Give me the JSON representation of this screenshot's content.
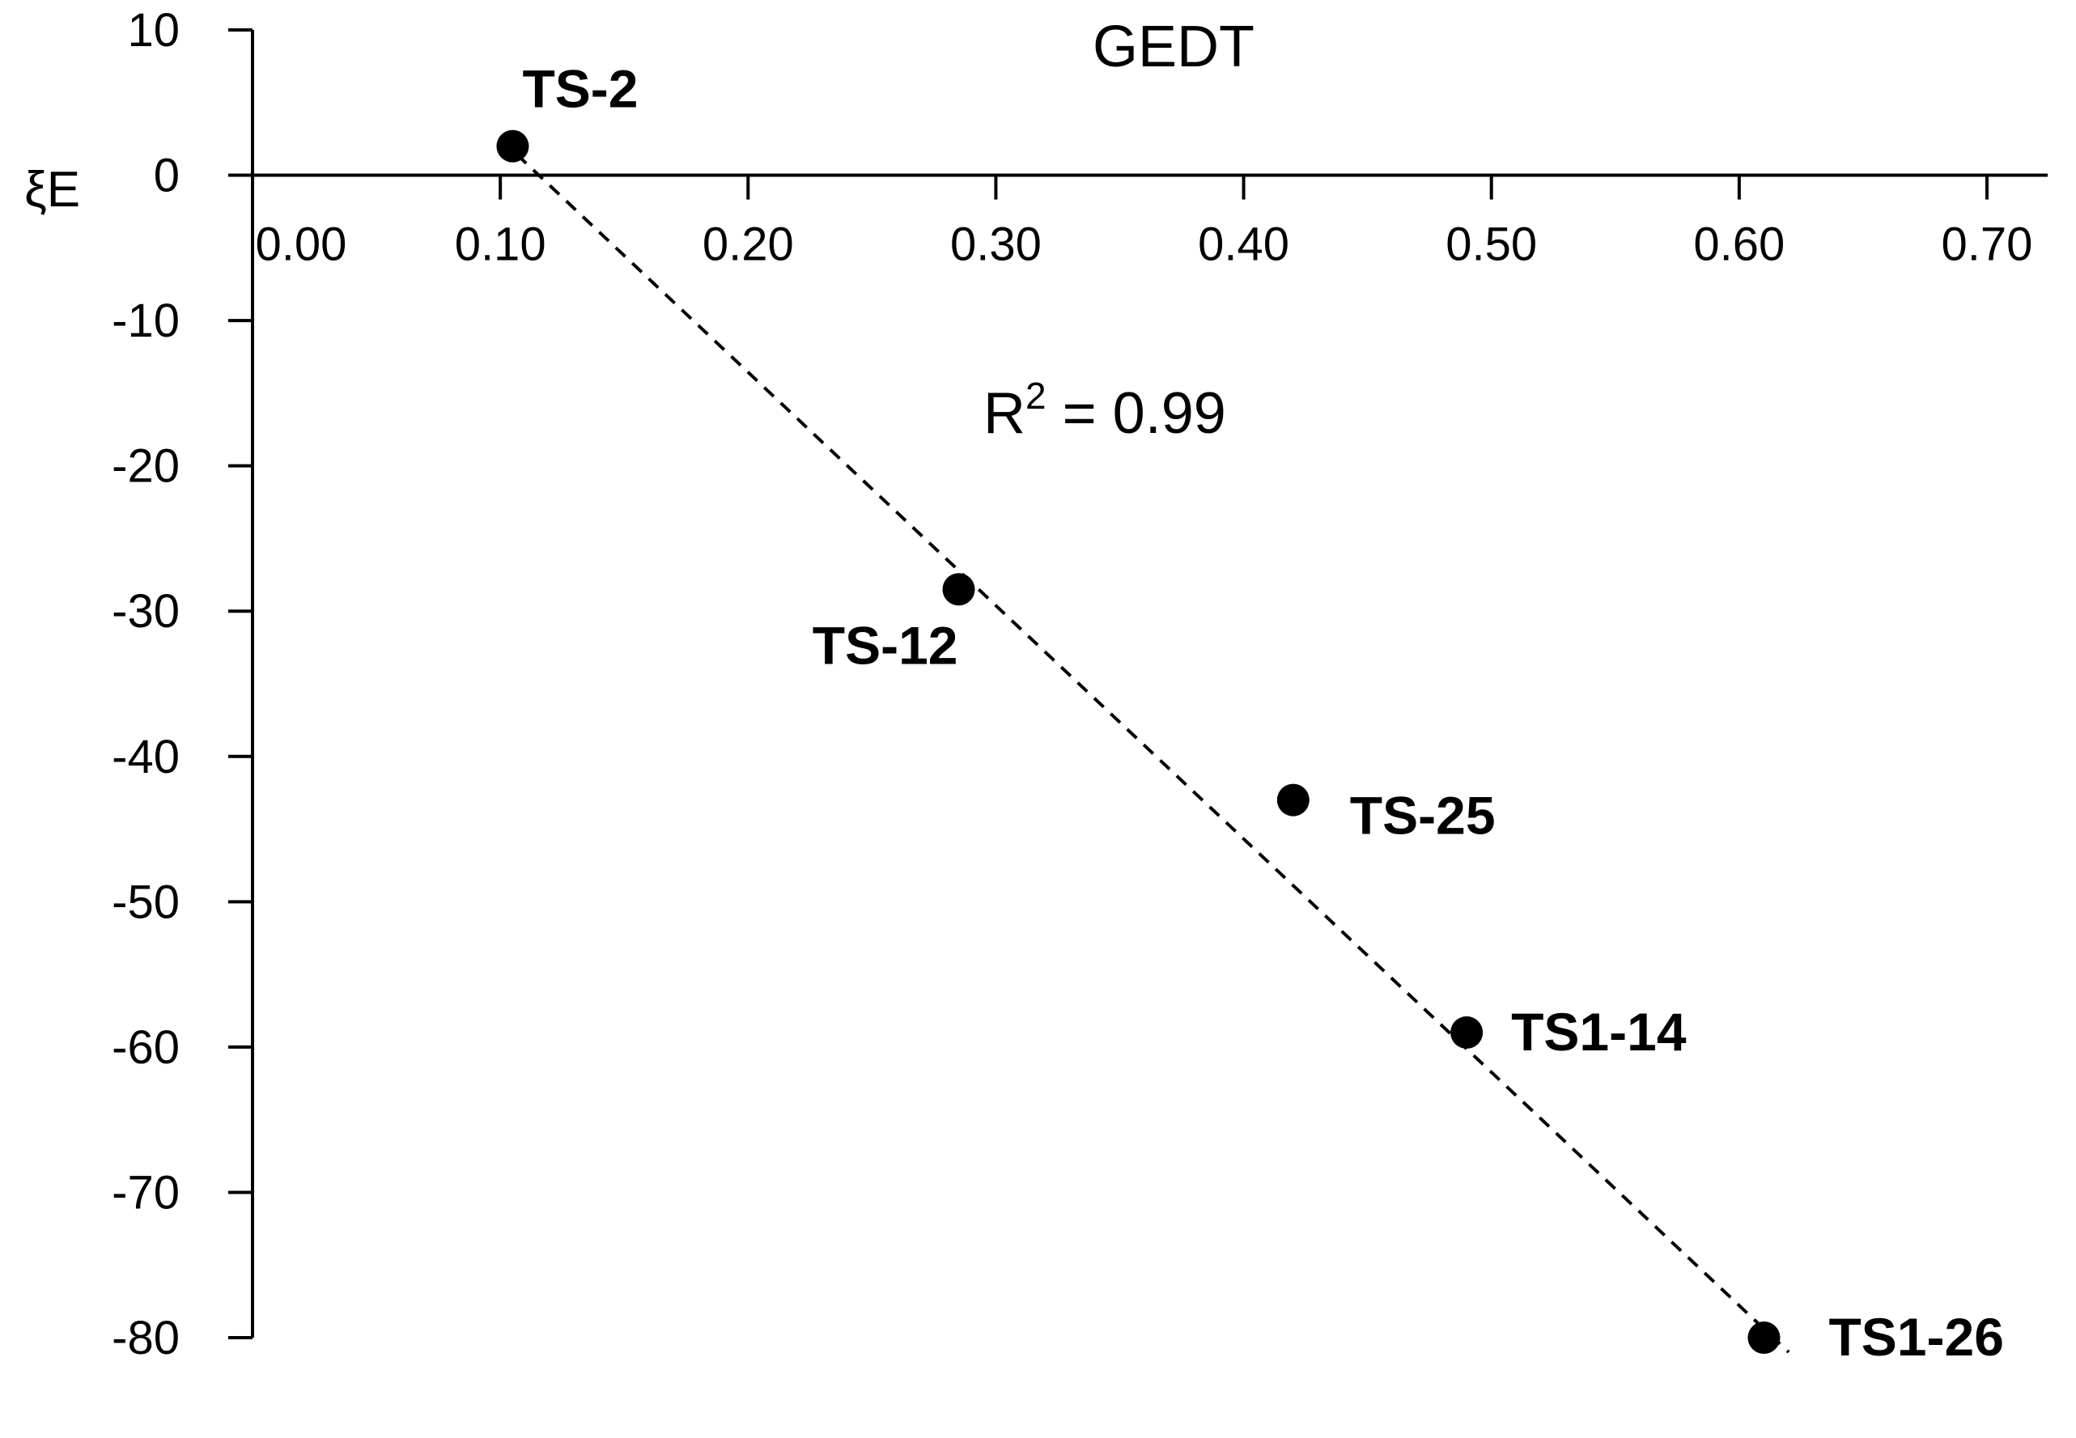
{
  "chart_data": {
    "type": "scatter",
    "title": "GEDT",
    "xlabel": "",
    "ylabel": "ξE",
    "xlim": [
      0.0,
      0.7
    ],
    "ylim": [
      -80,
      10
    ],
    "x_ticks": [
      "0.00",
      "0.10",
      "0.20",
      "0.30",
      "0.40",
      "0.50",
      "0.60",
      "0.70"
    ],
    "y_ticks": [
      "10",
      "0",
      "-10",
      "-20",
      "-30",
      "-40",
      "-50",
      "-60",
      "-70",
      "-80"
    ],
    "annotation": "R² = 0.99",
    "annotation_parts": {
      "prefix": "R",
      "superscript": "2",
      "suffix": " = 0.99"
    },
    "trendline": {
      "style": "dashed",
      "x": [
        0.1,
        0.62
      ],
      "y": [
        2.5,
        -81.0
      ]
    },
    "points": [
      {
        "label": "TS-2",
        "x": 0.105,
        "y": 2.0
      },
      {
        "label": "TS-12",
        "x": 0.285,
        "y": -28.5
      },
      {
        "label": "TS-25",
        "x": 0.42,
        "y": -43.0
      },
      {
        "label": "TS1-14",
        "x": 0.49,
        "y": -59.0
      },
      {
        "label": "TS1-26",
        "x": 0.61,
        "y": -80.0
      }
    ]
  }
}
